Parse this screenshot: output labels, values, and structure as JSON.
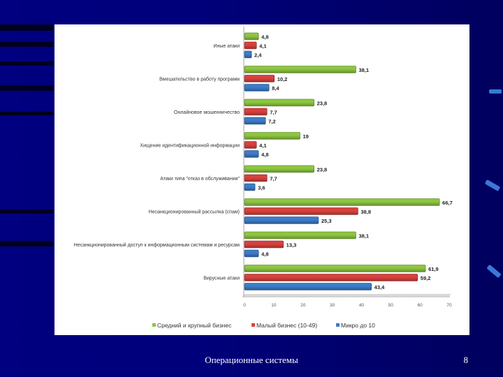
{
  "slide": {
    "footer_title": "Операционные системы",
    "page_number": "8",
    "background_color": "#000080"
  },
  "chart_data": {
    "type": "bar",
    "orientation": "horizontal",
    "title": "",
    "xlabel": "",
    "ylabel": "",
    "xlim": [
      0,
      70
    ],
    "x_ticks": [
      "0",
      "10",
      "20",
      "30",
      "40",
      "50",
      "60",
      "70"
    ],
    "legend_position": "bottom",
    "categories": [
      "Иные атаки",
      "Вмешательство в работу программ",
      "Онлайновое мошенничество",
      "Хищение идентификационной информации",
      "Атаки типа \"отказ в обслуживании\"",
      "Несанкционированный рассылка (спам)",
      "Несанкционированный доступ к информационным системам и ресурсам",
      "Вирусные атаки"
    ],
    "series": [
      {
        "name": "Средний и крупный бизнес",
        "color": "#8dc63f",
        "values": [
          4.8,
          38.1,
          23.8,
          19,
          23.8,
          66.7,
          38.1,
          61.9
        ],
        "labels": [
          "4,8",
          "38,1",
          "23,8",
          "19",
          "23,8",
          "66,7",
          "38,1",
          "61,9"
        ]
      },
      {
        "name": "Малый бизнес (10-49)",
        "color": "#d9413d",
        "values": [
          4.1,
          10.2,
          7.7,
          4.1,
          7.7,
          38.8,
          13.3,
          59.2
        ],
        "labels": [
          "4,1",
          "10,2",
          "7,7",
          "4,1",
          "7,7",
          "38,8",
          "13,3",
          "59,2"
        ]
      },
      {
        "name": "Микро до 10",
        "color": "#3d7cc9",
        "values": [
          2.4,
          8.4,
          7.2,
          4.8,
          3.6,
          25.3,
          4.8,
          43.4
        ],
        "labels": [
          "2,4",
          "8,4",
          "7,2",
          "4,8",
          "3,6",
          "25,3",
          "4,8",
          "43,4"
        ]
      }
    ]
  }
}
